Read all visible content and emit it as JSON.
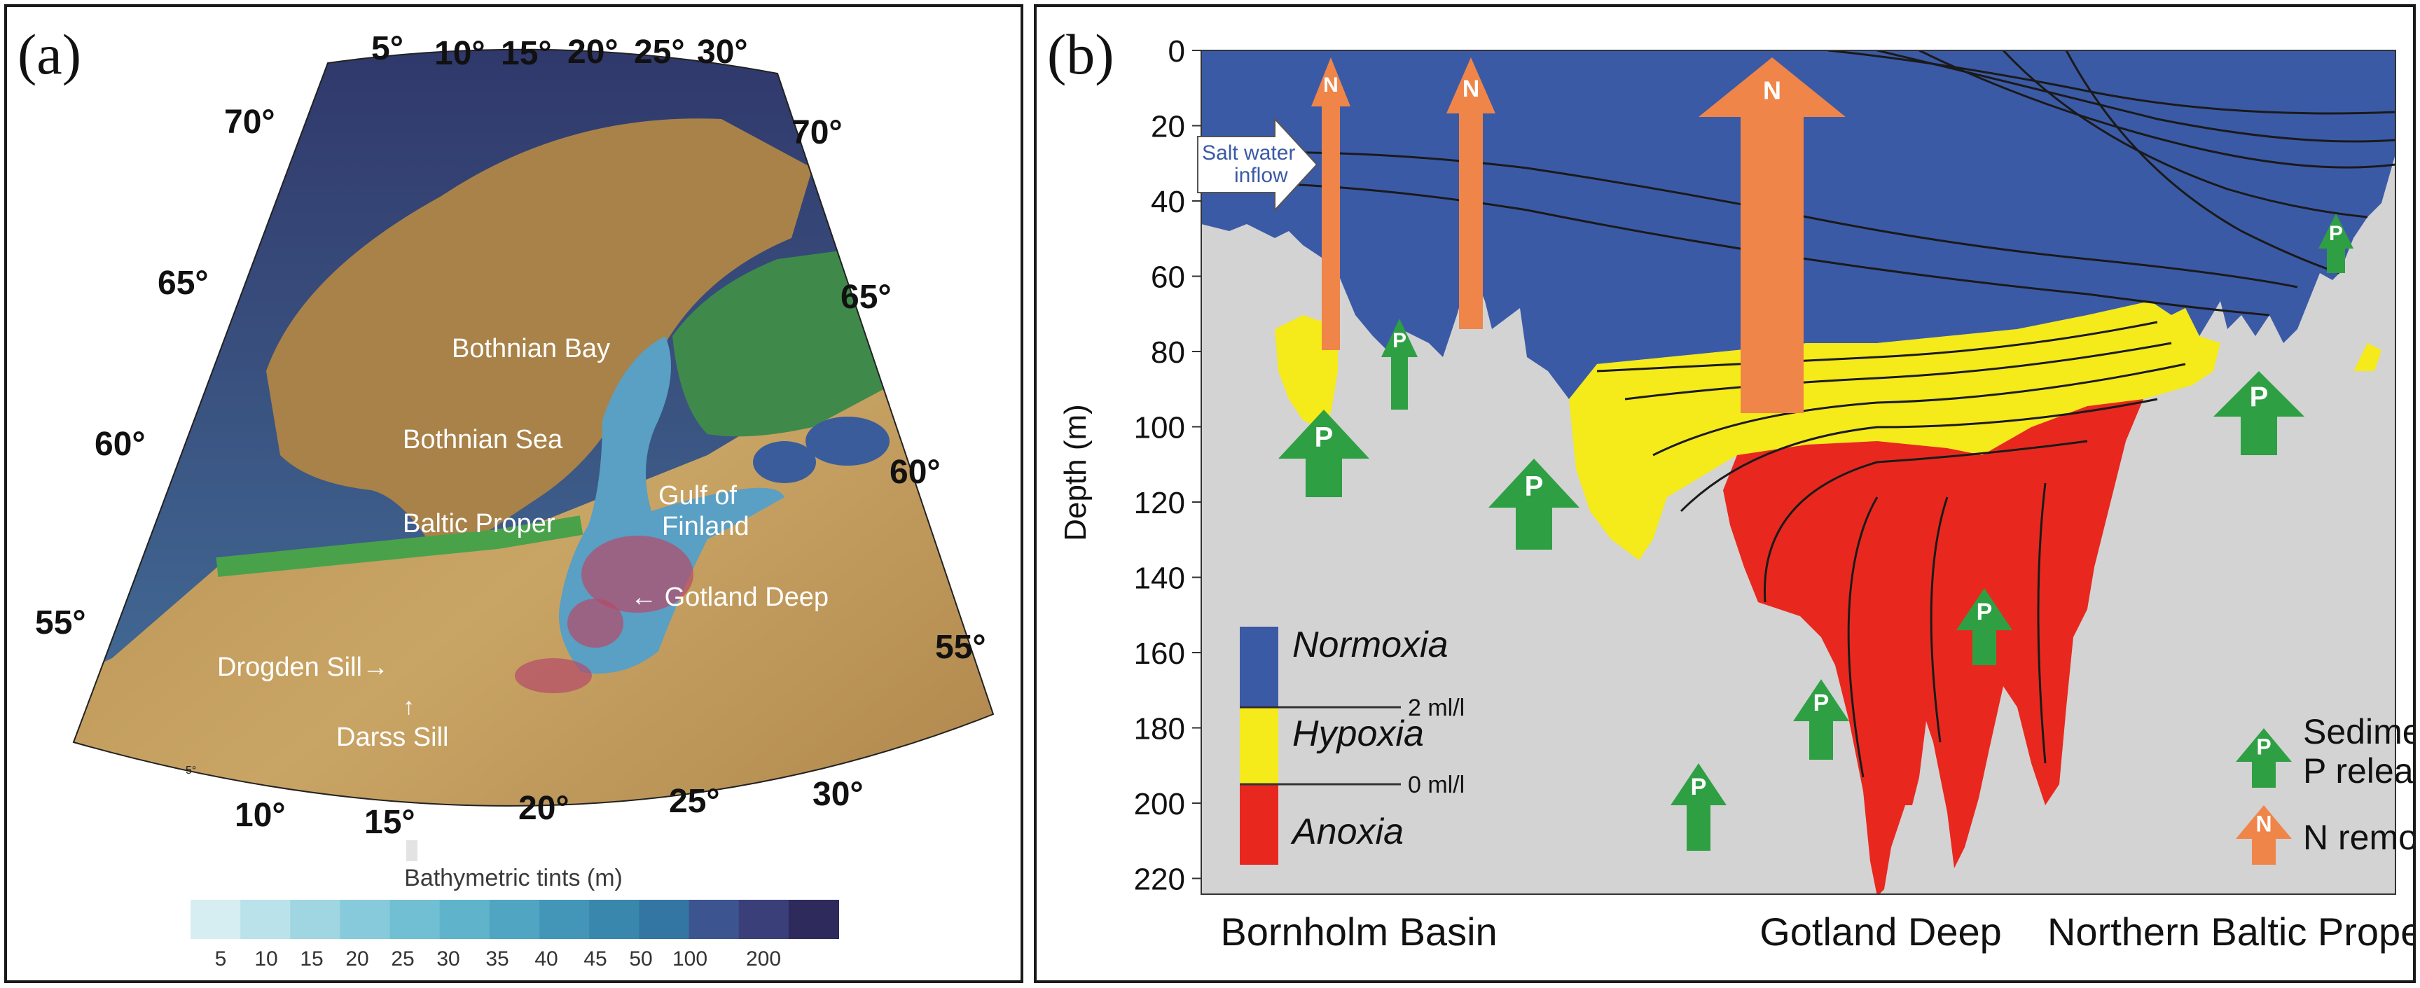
{
  "panel_a": {
    "letter": "(a)",
    "lat_labels_left": [
      "70°",
      "65°",
      "60°",
      "55°"
    ],
    "lat_labels_right": [
      "70°",
      "65°",
      "60°",
      "55°"
    ],
    "lon_labels_top": [
      "5°",
      "10°",
      "15°",
      "20°",
      "25°",
      "30°"
    ],
    "lon_labels_bottom": [
      "10°",
      "15°",
      "20°",
      "25°",
      "30°"
    ],
    "lon_small": "5°",
    "places": {
      "bothnian_bay": "Bothnian Bay",
      "bothnian_sea": "Bothnian Sea",
      "baltic_proper": "Baltic Proper",
      "gulf_of_finland": "Gulf of\nFinland",
      "gotland_deep": "Gotland Deep",
      "drogden_sill": "Drogden Sill",
      "darss_sill": "Darss Sill"
    },
    "legend_title": "Bathymetric tints (m)",
    "legend_ticks": [
      "5",
      "10",
      "15",
      "20",
      "25",
      "30",
      "35",
      "40",
      "45",
      "50",
      "100",
      "200"
    ],
    "legend_colors": [
      "#d6eef2",
      "#b9e2ea",
      "#9fd6e2",
      "#86cadb",
      "#71bfd3",
      "#5fb3cb",
      "#4fa5c2",
      "#4496b9",
      "#3a87ae",
      "#3376a3",
      "#3c5590",
      "#3a3f7a",
      "#2f2a5c"
    ]
  },
  "panel_b": {
    "letter": "(b)",
    "y_axis_label": "Depth (m)",
    "y_ticks": [
      "0",
      "20",
      "40",
      "60",
      "80",
      "100",
      "120",
      "140",
      "160",
      "180",
      "200",
      "220"
    ],
    "x_labels": [
      "Bornholm Basin",
      "Gotland Deep",
      "Northern Baltic Proper"
    ],
    "salt_water_inflow": "Salt water\ninflow",
    "arrow_n": "N",
    "arrow_p": "P",
    "legend": {
      "normoxia": "Normoxia",
      "hypoxia": "Hypoxia",
      "anoxia": "Anoxia",
      "threshold_2": "2 ml/l",
      "threshold_0": "0 ml/l"
    },
    "key": {
      "sediment_line1": "Sediment",
      "sediment_line2": "P release",
      "n_removal": "N removal"
    },
    "colors": {
      "normoxia": "#3b5aa6",
      "hypoxia": "#f5ea1a",
      "anoxia": "#e8281e",
      "seabed": "#d3d3d3",
      "p_arrow": "#2ea043",
      "n_arrow": "#ef8548"
    }
  }
}
